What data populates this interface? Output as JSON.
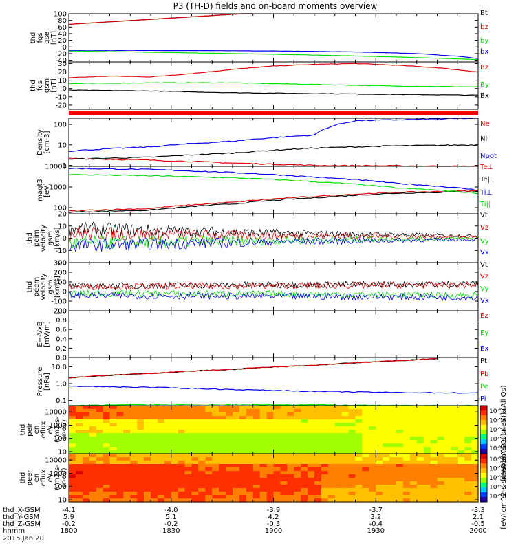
{
  "title": "P3 (TH-D) fields and on-board moments overview",
  "colors": {
    "black": "#000000",
    "red": "#dd0000",
    "green": "#00dd00",
    "blue": "#0000ee",
    "status": "#ff0000"
  },
  "x_axis": {
    "ticks": [
      {
        "hhmm": "1800",
        "x": "-4.1",
        "y": "5.9",
        "z": "-0.2"
      },
      {
        "hhmm": "1830",
        "x": "-4.0",
        "y": "5.1",
        "z": "-0.2"
      },
      {
        "hhmm": "1900",
        "x": "-3.9",
        "y": "4.2",
        "z": "-0.3"
      },
      {
        "hhmm": "1930",
        "x": "-3.7",
        "y": "3.2",
        "z": "-0.4"
      },
      {
        "hhmm": "2000",
        "x": "-3.3",
        "y": "2.1",
        "z": "-0.5"
      }
    ],
    "row_labels": [
      "thd_X-GSM",
      "thd_Y-GSM",
      "thd_Z-GSM",
      "hhmm"
    ],
    "date": "2015 Jan 20"
  },
  "chart_data": [
    {
      "type": "line",
      "id": "fgs_gse",
      "ylabel": [
        "thd",
        "fgs",
        "gse",
        "[nT]"
      ],
      "ylim": [
        -45,
        100
      ],
      "yticks": [
        100,
        80,
        60,
        40,
        20,
        0,
        -20,
        -40
      ],
      "series": [
        {
          "name": "Bt",
          "color": "black",
          "x": [
            0,
            0.45
          ],
          "y": [
            68,
            102
          ]
        },
        {
          "name": "bz",
          "color": "red",
          "x": [
            0,
            0.45
          ],
          "y": [
            68,
            102
          ]
        },
        {
          "name": "by",
          "color": "green",
          "x": [
            0,
            0.1,
            0.3,
            0.5,
            0.7,
            0.85,
            1
          ],
          "y": [
            -12,
            -14,
            -18,
            -22,
            -27,
            -32,
            -38
          ]
        },
        {
          "name": "bx",
          "color": "blue",
          "x": [
            0,
            0.3,
            0.5,
            0.7,
            0.85,
            0.95,
            1
          ],
          "y": [
            -10,
            -11,
            -12,
            -15,
            -20,
            -28,
            -35
          ]
        }
      ]
    },
    {
      "type": "line",
      "id": "fgs_gsm",
      "ylabel": [
        "thd",
        "fgs",
        "gsm",
        "[nT]"
      ],
      "ylim": [
        -25,
        32
      ],
      "yticks": [
        30,
        20,
        10,
        0,
        -10,
        -20
      ],
      "series": [
        {
          "name": "Bz",
          "color": "red",
          "x": [
            0,
            0.1,
            0.2,
            0.3,
            0.4,
            0.5,
            0.6,
            0.7,
            0.8,
            0.9,
            1
          ],
          "y": [
            13,
            15,
            14,
            18,
            23,
            27,
            29,
            30,
            28,
            25,
            20
          ]
        },
        {
          "name": "By",
          "color": "green",
          "x": [
            0,
            0.2,
            0.4,
            0.6,
            0.8,
            1
          ],
          "y": [
            6,
            7,
            7,
            5,
            3,
            2
          ]
        },
        {
          "name": "Bx",
          "color": "black",
          "x": [
            0,
            0.2,
            0.4,
            0.6,
            0.8,
            1
          ],
          "y": [
            -2,
            -3,
            -5,
            -6,
            -7,
            -8
          ]
        }
      ]
    },
    {
      "type": "line",
      "id": "density",
      "ylabel": [
        "Density",
        "[cm-3]"
      ],
      "scale": "log",
      "ylim": [
        0.9,
        200
      ],
      "yticks": [
        100,
        10,
        1
      ],
      "series": [
        {
          "name": "Ne",
          "color": "red",
          "x": [
            0,
            0.2,
            0.4,
            0.6,
            0.8,
            1
          ],
          "y": [
            2.2,
            1.8,
            1.3,
            1.0,
            0.95,
            0.9
          ]
        },
        {
          "name": "Ni",
          "color": "black",
          "x": [
            0,
            0.2,
            0.4,
            0.6,
            0.8,
            1
          ],
          "y": [
            2,
            2.5,
            4,
            7,
            9,
            10
          ]
        },
        {
          "name": "Npot",
          "color": "blue",
          "x": [
            0,
            0.2,
            0.4,
            0.6,
            0.7,
            1
          ],
          "y": [
            5,
            8,
            15,
            30,
            150,
            200
          ]
        }
      ]
    },
    {
      "type": "line",
      "id": "temperature",
      "ylabel": [
        "magt3",
        "[eV]"
      ],
      "scale": "log",
      "ylim": [
        50,
        10000
      ],
      "yticks": [
        10000,
        1000,
        100
      ],
      "series": [
        {
          "name": "Te⊥",
          "color": "red",
          "x": [
            0,
            0.2,
            0.4,
            0.6,
            0.8,
            1
          ],
          "y": [
            70,
            90,
            180,
            350,
            550,
            650
          ]
        },
        {
          "name": "Te||",
          "color": "black",
          "x": [
            0,
            0.2,
            0.4,
            0.6,
            0.8,
            1
          ],
          "y": [
            60,
            75,
            150,
            300,
            500,
            600
          ]
        },
        {
          "name": "Ti⊥",
          "color": "blue",
          "x": [
            0,
            0.2,
            0.4,
            0.6,
            0.8,
            1
          ],
          "y": [
            8000,
            7000,
            5000,
            3000,
            1500,
            700
          ]
        },
        {
          "name": "Ti||",
          "color": "green",
          "x": [
            0,
            0.2,
            0.4,
            0.6,
            0.8,
            1
          ],
          "y": [
            4000,
            3500,
            2800,
            1800,
            900,
            500
          ]
        }
      ]
    },
    {
      "type": "line",
      "id": "peim_velocity",
      "ylabel": [
        "thd",
        "peim",
        "velocity",
        "gsm",
        "[km/s]"
      ],
      "ylim": [
        -20,
        20
      ],
      "yticks": [
        20,
        10,
        0,
        -10,
        -20
      ],
      "series": [
        {
          "name": "Vt",
          "color": "black",
          "x": [
            0,
            0.5,
            1
          ],
          "y": [
            8,
            4,
            2
          ]
        },
        {
          "name": "Vz",
          "color": "red",
          "x": [
            0,
            0.5,
            1
          ],
          "y": [
            4,
            2,
            1
          ]
        },
        {
          "name": "Vy",
          "color": "green",
          "x": [
            0,
            0.5,
            1
          ],
          "y": [
            -4,
            -2,
            0
          ]
        },
        {
          "name": "Vx",
          "color": "blue",
          "x": [
            0,
            0.5,
            1
          ],
          "y": [
            -6,
            -3,
            -1
          ]
        }
      ]
    },
    {
      "type": "line",
      "id": "peem_velocity",
      "ylabel": [
        "thd",
        "peem",
        "velocity",
        "gsm",
        "[km/s]"
      ],
      "ylim": [
        -200,
        300
      ],
      "yticks": [
        300,
        200,
        100,
        0,
        -100,
        -200
      ],
      "series": [
        {
          "name": "Vt",
          "color": "black",
          "x": [
            0,
            0.5,
            1
          ],
          "y": [
            55,
            70,
            80
          ]
        },
        {
          "name": "Vz",
          "color": "red",
          "x": [
            0,
            0.5,
            1
          ],
          "y": [
            50,
            60,
            70
          ]
        },
        {
          "name": "Vy",
          "color": "green",
          "x": [
            0,
            0.5,
            1
          ],
          "y": [
            -20,
            -25,
            -40
          ]
        },
        {
          "name": "Vx",
          "color": "blue",
          "x": [
            0,
            0.5,
            1
          ],
          "y": [
            -40,
            -50,
            -60
          ]
        }
      ]
    },
    {
      "type": "line",
      "id": "efield",
      "ylabel": [
        "E=-VxB",
        "[mV/m]"
      ],
      "ylim": [
        0,
        1
      ],
      "yticks": [
        1.0,
        0.8,
        0.6,
        0.4,
        0.2,
        0.0
      ],
      "series": [
        {
          "name": "Ez",
          "color": "red",
          "x": [],
          "y": []
        },
        {
          "name": "Ey",
          "color": "green",
          "x": [],
          "y": []
        },
        {
          "name": "Ex",
          "color": "blue",
          "x": [],
          "y": []
        }
      ]
    },
    {
      "type": "line",
      "id": "pressure",
      "ylabel": [
        "Pressure",
        "[nPa]"
      ],
      "scale": "log",
      "ylim": [
        0.05,
        35
      ],
      "yticks": [
        10.0,
        1.0,
        0.1
      ],
      "series": [
        {
          "name": "Pt",
          "color": "black",
          "x": [
            0,
            0.2,
            0.4,
            0.6,
            0.8,
            0.9
          ],
          "y": [
            2.2,
            4,
            7,
            12,
            22,
            30
          ]
        },
        {
          "name": "Pb",
          "color": "red",
          "x": [
            0,
            0.2,
            0.4,
            0.6,
            0.8,
            0.9
          ],
          "y": [
            2.2,
            4,
            7,
            12,
            22,
            30
          ]
        },
        {
          "name": "Pe",
          "color": "green",
          "x": [
            0,
            0.2,
            0.4,
            0.6,
            0.8,
            1
          ],
          "y": [
            0.05,
            0.06,
            0.06,
            0.055,
            0.05,
            0.05
          ]
        },
        {
          "name": "Pi",
          "color": "blue",
          "x": [
            0,
            0.2,
            0.4,
            0.6,
            0.8,
            1
          ],
          "y": [
            0.7,
            0.6,
            0.45,
            0.35,
            0.3,
            0.28
          ]
        }
      ]
    },
    {
      "type": "heatmap",
      "id": "peir",
      "ylabel": [
        "thd",
        "peir",
        "en",
        "eflux",
        "eV",
        "(cm2-s-",
        "sr-eV)"
      ],
      "scale": "log",
      "ylim": [
        7,
        30000
      ],
      "yticks": [
        10000,
        1000,
        100,
        10
      ],
      "colorbar": {
        "label": "[eV/(cm^2-s-sr-eV)] (All Qs)",
        "ticks": [
          "10^8",
          "10^6",
          "10^4",
          "10^2",
          "10^0"
        ]
      }
    },
    {
      "type": "heatmap",
      "id": "peer",
      "ylabel": [
        "thd",
        "peer",
        "en",
        "eflux",
        "eV",
        "(cm2-s-",
        "sr-eV)"
      ],
      "scale": "log",
      "ylim": [
        7,
        30000
      ],
      "yticks": [
        10000,
        1000,
        100,
        10
      ],
      "colorbar": {
        "label": "[eV/(cm^2-s-sr-eV)] (All Qs)",
        "ticks": [
          "10^8",
          "10^6",
          "10^4",
          "10^2",
          "10^0"
        ]
      }
    }
  ]
}
